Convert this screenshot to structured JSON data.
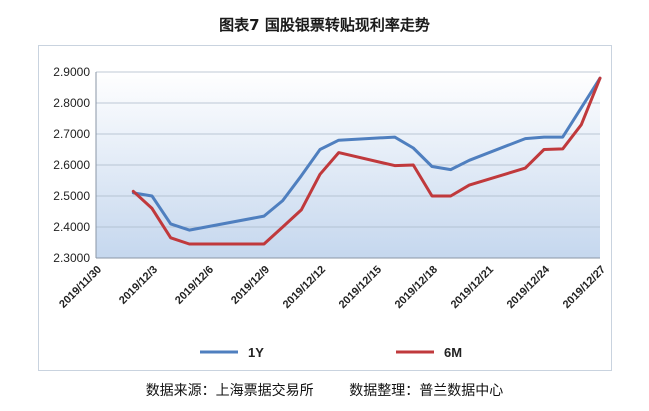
{
  "title": "图表7  国股银票转贴现利率走势",
  "source_left": "数据来源：上海票据交易所",
  "source_right": "数据整理：普兰数据中心",
  "colors": {
    "series_1y": "#4f7fbf",
    "series_6m": "#c0393c",
    "grid": "#aab8c8",
    "bg_top": "#ffffff",
    "bg_bottom": "#c5d7ee"
  },
  "chart_data": {
    "type": "line",
    "title": "图表7  国股银票转贴现利率走势",
    "xlabel": "",
    "ylabel": "",
    "ylim": [
      2.3,
      2.9
    ],
    "yticks": [
      "2.3000",
      "2.4000",
      "2.5000",
      "2.6000",
      "2.7000",
      "2.8000",
      "2.9000"
    ],
    "xticks": [
      "2019/11/30",
      "2019/12/3",
      "2019/12/6",
      "2019/12/9",
      "2019/12/12",
      "2019/12/15",
      "2019/12/18",
      "2019/12/21",
      "2019/12/24",
      "2019/12/27"
    ],
    "grid": true,
    "legend": "bottom",
    "series": [
      {
        "name": "1Y",
        "x": [
          "2019/12/2",
          "2019/12/3",
          "2019/12/4",
          "2019/12/5",
          "2019/12/9",
          "2019/12/10",
          "2019/12/11",
          "2019/12/12",
          "2019/12/13",
          "2019/12/16",
          "2019/12/17",
          "2019/12/18",
          "2019/12/19",
          "2019/12/20",
          "2019/12/23",
          "2019/12/24",
          "2019/12/25",
          "2019/12/27"
        ],
        "values": [
          2.51,
          2.5,
          2.41,
          2.39,
          2.435,
          2.485,
          2.565,
          2.65,
          2.68,
          2.69,
          2.655,
          2.595,
          2.585,
          2.615,
          2.685,
          2.69,
          2.69,
          2.88
        ]
      },
      {
        "name": "6M",
        "x": [
          "2019/12/2",
          "2019/12/3",
          "2019/12/4",
          "2019/12/5",
          "2019/12/6",
          "2019/12/9",
          "2019/12/10",
          "2019/12/11",
          "2019/12/12",
          "2019/12/13",
          "2019/12/16",
          "2019/12/17",
          "2019/12/18",
          "2019/12/19",
          "2019/12/20",
          "2019/12/23",
          "2019/12/24",
          "2019/12/25",
          "2019/12/26",
          "2019/12/27"
        ],
        "values": [
          2.515,
          2.46,
          2.365,
          2.345,
          2.345,
          2.345,
          2.4,
          2.455,
          2.57,
          2.64,
          2.598,
          2.6,
          2.5,
          2.5,
          2.535,
          2.59,
          2.65,
          2.652,
          2.73,
          2.88
        ]
      }
    ]
  }
}
